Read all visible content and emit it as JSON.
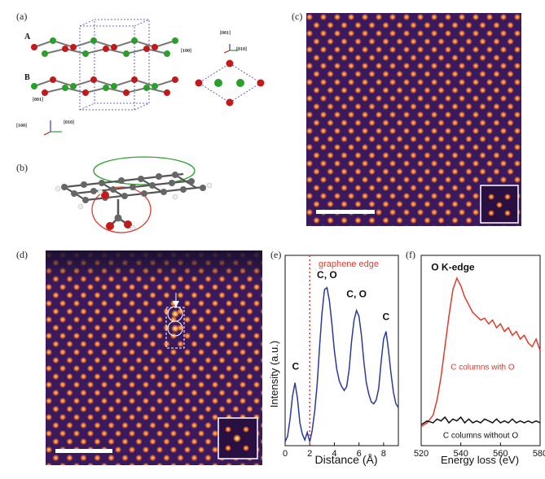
{
  "panels": {
    "a": {
      "label": "(a)",
      "layer_a": "A",
      "layer_b": "B",
      "dir_001_left": "[001]",
      "dir_100_left": "[100]",
      "dir_010_left": "[010]",
      "dir_001_right": "[001]",
      "dir_100_right": "[100]",
      "dir_010_right": "[010]"
    },
    "b": {
      "label": "(b)"
    },
    "c": {
      "label": "(c)"
    },
    "d": {
      "label": "(d)"
    },
    "e": {
      "label": "(e)"
    },
    "f": {
      "label": "(f)"
    }
  },
  "colors": {
    "stem_bg": "#3a1a5c",
    "stem_spot": "#ff9a3a",
    "line_blue": "#2a3a9a",
    "line_red": "#e03a2a",
    "atom_red": "#c21a1a",
    "atom_green": "#2aa02a"
  },
  "chart_data": [
    {
      "type": "line",
      "panel": "e",
      "xlabel": "Distance (Å)",
      "ylabel": "Intensity (a.u.)",
      "xlim": [
        0,
        9.2
      ],
      "xticks": [
        0,
        2,
        4,
        6,
        8
      ],
      "edge_label": "graphene edge",
      "edge_x": 2.0,
      "annotations": [
        {
          "text": "C",
          "x": 0.85,
          "y": 0.4
        },
        {
          "text": "C, O",
          "x": 3.4,
          "y": 0.88
        },
        {
          "text": "C, O",
          "x": 5.8,
          "y": 0.78
        },
        {
          "text": "C",
          "x": 8.2,
          "y": 0.66
        }
      ],
      "x": [
        0.0,
        0.2,
        0.4,
        0.6,
        0.8,
        1.0,
        1.2,
        1.4,
        1.6,
        1.8,
        2.0,
        2.2,
        2.4,
        2.6,
        2.8,
        3.0,
        3.2,
        3.4,
        3.6,
        3.8,
        4.0,
        4.2,
        4.4,
        4.6,
        4.8,
        5.0,
        5.2,
        5.4,
        5.6,
        5.8,
        6.0,
        6.2,
        6.4,
        6.6,
        6.8,
        7.0,
        7.2,
        7.4,
        7.6,
        7.8,
        8.0,
        8.2,
        8.4,
        8.6,
        8.8,
        9.0,
        9.2
      ],
      "y": [
        0.02,
        0.05,
        0.14,
        0.26,
        0.33,
        0.25,
        0.12,
        0.06,
        0.03,
        0.07,
        0.02,
        0.08,
        0.18,
        0.32,
        0.52,
        0.7,
        0.82,
        0.83,
        0.76,
        0.64,
        0.5,
        0.4,
        0.34,
        0.31,
        0.29,
        0.31,
        0.4,
        0.55,
        0.66,
        0.71,
        0.68,
        0.58,
        0.44,
        0.33,
        0.27,
        0.23,
        0.22,
        0.24,
        0.3,
        0.44,
        0.56,
        0.6,
        0.5,
        0.38,
        0.28,
        0.22,
        0.2
      ]
    },
    {
      "type": "line",
      "panel": "f",
      "xlabel": "Energy loss (eV)",
      "xlim": [
        520,
        580
      ],
      "xticks": [
        520,
        540,
        560,
        580
      ],
      "edge_title": "O K-edge",
      "series": [
        {
          "name": "C columns with O",
          "color": "#e03a2a",
          "x": [
            520,
            523,
            526,
            528,
            530,
            532,
            534,
            536,
            538,
            540,
            542,
            544,
            546,
            548,
            550,
            552,
            554,
            556,
            558,
            560,
            562,
            564,
            566,
            568,
            570,
            572,
            574,
            576,
            578,
            580
          ],
          "y": [
            0.1,
            0.12,
            0.16,
            0.24,
            0.36,
            0.52,
            0.68,
            0.82,
            0.88,
            0.84,
            0.78,
            0.74,
            0.7,
            0.68,
            0.66,
            0.67,
            0.64,
            0.66,
            0.62,
            0.64,
            0.6,
            0.62,
            0.58,
            0.6,
            0.56,
            0.58,
            0.54,
            0.52,
            0.56,
            0.5
          ]
        },
        {
          "name": "C columns without O",
          "color": "#111111",
          "x": [
            520,
            523,
            526,
            528,
            530,
            532,
            534,
            536,
            538,
            540,
            542,
            544,
            546,
            548,
            550,
            552,
            554,
            556,
            558,
            560,
            562,
            564,
            566,
            568,
            570,
            572,
            574,
            576,
            578,
            580
          ],
          "y": [
            0.11,
            0.13,
            0.12,
            0.14,
            0.13,
            0.15,
            0.12,
            0.14,
            0.13,
            0.15,
            0.12,
            0.14,
            0.12,
            0.13,
            0.12,
            0.14,
            0.13,
            0.12,
            0.14,
            0.12,
            0.13,
            0.12,
            0.14,
            0.12,
            0.13,
            0.12,
            0.13,
            0.12,
            0.13,
            0.12
          ]
        }
      ]
    }
  ]
}
